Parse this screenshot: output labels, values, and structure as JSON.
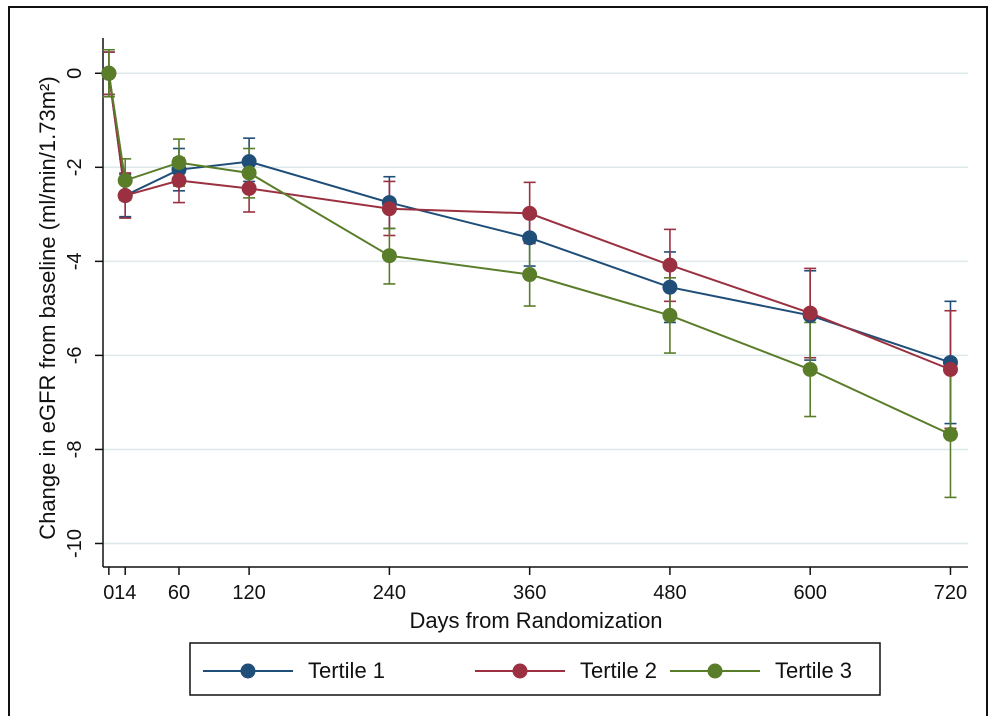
{
  "chart_data": {
    "type": "line",
    "xlabel": "Days from Randomization",
    "ylabel": "Change in eGFR from baseline (ml/min/1.73m²)",
    "xlim": [
      -5,
      735
    ],
    "ylim": [
      -10.5,
      0.75
    ],
    "x_ticks": [
      0,
      14,
      60,
      120,
      240,
      360,
      480,
      600,
      720
    ],
    "x_tick_labels": [
      "0",
      "14",
      "60",
      "120",
      "240",
      "360",
      "480",
      "600",
      "720"
    ],
    "y_ticks": [
      0,
      -2,
      -4,
      -6,
      -8,
      -10
    ],
    "y_tick_labels": [
      "0",
      "-2",
      "-4",
      "-6",
      "-8",
      "-10"
    ],
    "grid": true,
    "legend_position": "bottom",
    "x": [
      0,
      14,
      60,
      120,
      240,
      360,
      480,
      600,
      720
    ],
    "series": [
      {
        "name": "Tertile 1",
        "color": "#1f4e79",
        "values": [
          0,
          -2.6,
          -2.05,
          -1.88,
          -2.75,
          -3.5,
          -4.55,
          -5.15,
          -6.15
        ],
        "lower": [
          -0.45,
          -3.05,
          -2.5,
          -2.3,
          -3.3,
          -4.1,
          -5.3,
          -6.1,
          -7.45
        ],
        "upper": [
          0.45,
          -2.15,
          -1.6,
          -1.38,
          -2.2,
          -2.9,
          -3.8,
          -4.2,
          -4.85
        ]
      },
      {
        "name": "Tertile 2",
        "color": "#9b3040",
        "values": [
          0,
          -2.6,
          -2.28,
          -2.45,
          -2.88,
          -2.98,
          -4.08,
          -5.1,
          -6.3
        ],
        "lower": [
          -0.45,
          -3.08,
          -2.75,
          -2.95,
          -3.45,
          -3.62,
          -4.85,
          -6.05,
          -7.55
        ],
        "upper": [
          0.45,
          -2.12,
          -1.8,
          -1.95,
          -2.3,
          -2.32,
          -3.32,
          -4.15,
          -5.05
        ]
      },
      {
        "name": "Tertile 3",
        "color": "#5a7d2a",
        "values": [
          0,
          -2.28,
          -1.9,
          -2.12,
          -3.88,
          -4.28,
          -5.15,
          -6.3,
          -7.68
        ],
        "lower": [
          -0.5,
          -2.7,
          -2.4,
          -2.65,
          -4.48,
          -4.95,
          -5.95,
          -7.3,
          -9.02
        ],
        "upper": [
          0.5,
          -1.82,
          -1.4,
          -1.6,
          -3.3,
          -3.6,
          -4.35,
          -5.3,
          -6.35
        ]
      }
    ]
  }
}
